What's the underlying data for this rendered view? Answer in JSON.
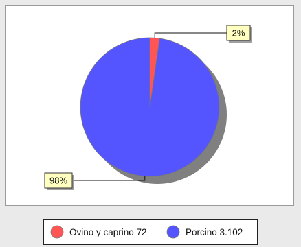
{
  "chart_data": {
    "type": "pie",
    "slices": [
      {
        "label": "Ovino y caprino",
        "value": 72,
        "value_text": "72",
        "percent_text": "2%",
        "color": "#ff5555"
      },
      {
        "label": "Porcino",
        "value": 3102,
        "value_text": "3.102",
        "percent_text": "98%",
        "color": "#5555ff"
      }
    ],
    "legend_position": "bottom",
    "shadow_color": "#808080",
    "label_bg_color": "#ffffc0"
  }
}
